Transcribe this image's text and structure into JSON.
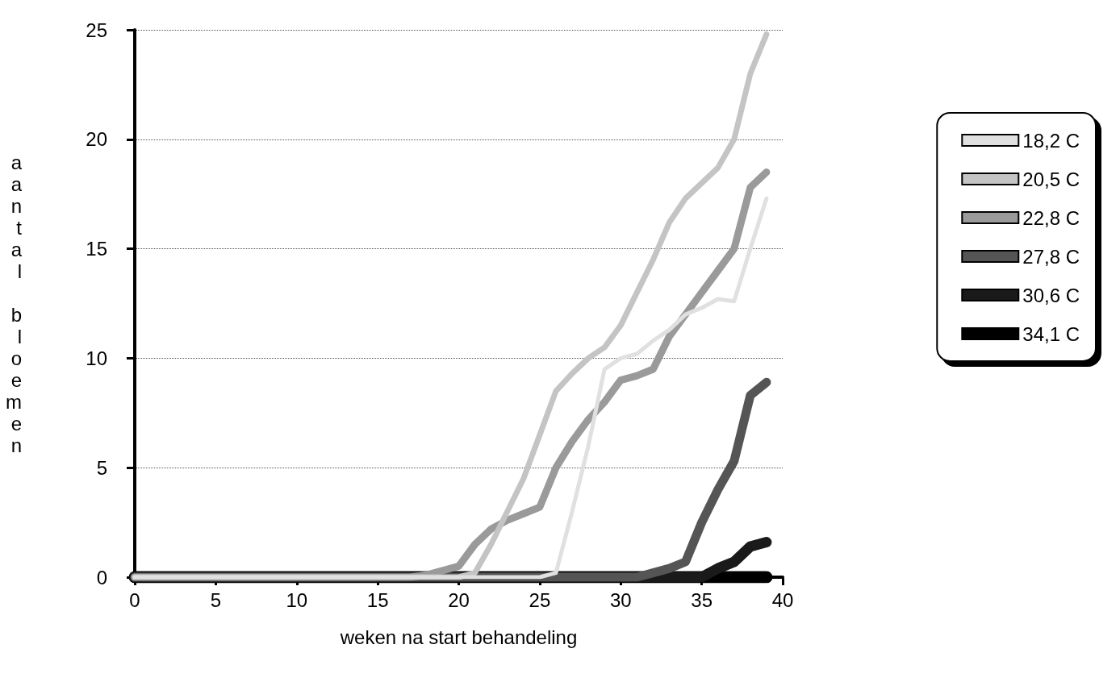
{
  "chart_data": {
    "type": "line",
    "xlabel": "weken na start behandeling",
    "ylabel": "aantal bloemen",
    "x": [
      0,
      1,
      2,
      3,
      4,
      5,
      6,
      7,
      8,
      9,
      10,
      11,
      12,
      13,
      14,
      15,
      16,
      17,
      18,
      19,
      20,
      21,
      22,
      23,
      24,
      25,
      26,
      27,
      28,
      29,
      30,
      31,
      32,
      33,
      34,
      35,
      36,
      37,
      38,
      39
    ],
    "series": [
      {
        "name": "18,2 C",
        "color": "#e0e0e0",
        "values": [
          0,
          0,
          0,
          0,
          0,
          0,
          0,
          0,
          0,
          0,
          0,
          0,
          0,
          0,
          0,
          0,
          0,
          0,
          0,
          0,
          0,
          0,
          0,
          0,
          0,
          0,
          0.2,
          3,
          6,
          9.5,
          10,
          10.2,
          10.8,
          11.3,
          12,
          12.3,
          12.7,
          12.6,
          15,
          17.3
        ]
      },
      {
        "name": "20,5 C",
        "color": "#c4c4c4",
        "values": [
          0,
          0,
          0,
          0,
          0,
          0,
          0,
          0,
          0,
          0,
          0,
          0,
          0,
          0,
          0,
          0,
          0,
          0,
          0,
          0,
          0,
          0.2,
          1.5,
          3,
          4.5,
          6.5,
          8.5,
          9.3,
          10,
          10.5,
          11.5,
          13,
          14.5,
          16.2,
          17.3,
          18,
          18.7,
          20,
          23,
          24.8
        ]
      },
      {
        "name": "22,8 C",
        "color": "#9a9a9a",
        "values": [
          0,
          0,
          0,
          0,
          0,
          0,
          0,
          0,
          0,
          0,
          0,
          0,
          0,
          0,
          0,
          0,
          0,
          0,
          0.1,
          0.3,
          0.5,
          1.5,
          2.2,
          2.6,
          2.9,
          3.2,
          5,
          6.2,
          7.2,
          8,
          9,
          9.2,
          9.5,
          11,
          12,
          13,
          14,
          15,
          17.8,
          18.5
        ]
      },
      {
        "name": "27,8 C",
        "color": "#555555",
        "values": [
          0,
          0,
          0,
          0,
          0,
          0,
          0,
          0,
          0,
          0,
          0,
          0,
          0,
          0,
          0,
          0,
          0,
          0,
          0,
          0,
          0,
          0,
          0,
          0,
          0,
          0,
          0,
          0,
          0,
          0,
          0,
          0,
          0.2,
          0.4,
          0.7,
          2.5,
          4,
          5.3,
          8.3,
          8.9
        ]
      },
      {
        "name": "30,6 C",
        "color": "#1a1a1a",
        "values": [
          0,
          0,
          0,
          0,
          0,
          0,
          0,
          0,
          0,
          0,
          0,
          0,
          0,
          0,
          0,
          0,
          0,
          0,
          0,
          0,
          0,
          0,
          0,
          0,
          0,
          0,
          0,
          0,
          0,
          0,
          0,
          0,
          0,
          0,
          0,
          0,
          0.4,
          0.7,
          1.4,
          1.6
        ]
      },
      {
        "name": "34,1 C",
        "color": "#000000",
        "values": [
          0,
          0,
          0,
          0,
          0,
          0,
          0,
          0,
          0,
          0,
          0,
          0,
          0,
          0,
          0,
          0,
          0,
          0,
          0,
          0,
          0,
          0,
          0,
          0,
          0,
          0,
          0,
          0,
          0,
          0,
          0,
          0,
          0,
          0,
          0,
          0,
          0,
          0,
          0,
          0
        ]
      }
    ],
    "xlim": [
      0,
      40
    ],
    "xticks": [
      0,
      5,
      10,
      15,
      20,
      25,
      30,
      35,
      40
    ],
    "ylim": [
      0,
      25
    ],
    "yticks": [
      0,
      5,
      10,
      15,
      20,
      25
    ],
    "grid": "y",
    "legend": "right",
    "marker": "none",
    "line_style": "solid"
  }
}
